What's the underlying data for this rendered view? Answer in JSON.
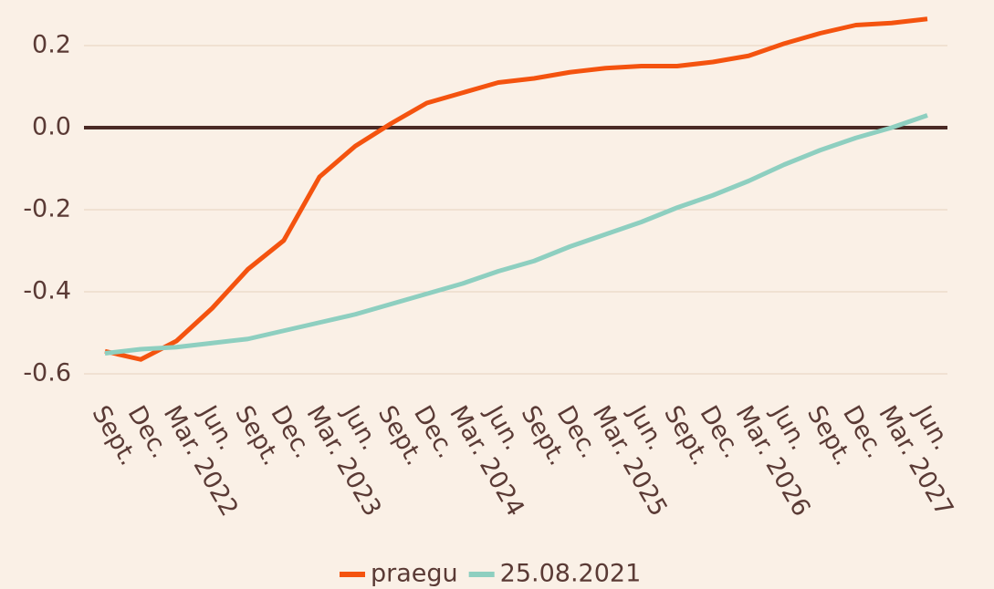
{
  "chart_data": {
    "type": "line",
    "categories": [
      "Sept.",
      "Dec.",
      "Mar. 2022",
      "Jun.",
      "Sept.",
      "Dec.",
      "Mar. 2023",
      "Jun.",
      "Sept.",
      "Dec.",
      "Mar. 2024",
      "Jun.",
      "Sept.",
      "Dec.",
      "Mar. 2025",
      "Jun.",
      "Sept.",
      "Dec.",
      "Mar. 2026",
      "Jun.",
      "Sept.",
      "Dec.",
      "Mar. 2027",
      "Jun."
    ],
    "series": [
      {
        "name": "praegu",
        "color": "#f4530f",
        "values": [
          -0.545,
          -0.565,
          -0.52,
          -0.44,
          -0.345,
          -0.275,
          -0.12,
          -0.045,
          0.01,
          0.06,
          0.085,
          0.11,
          0.12,
          0.135,
          0.145,
          0.15,
          0.15,
          0.16,
          0.175,
          0.205,
          0.23,
          0.25,
          0.255,
          0.265
        ]
      },
      {
        "name": "25.08.2021",
        "color": "#8ecfc0",
        "values": [
          -0.55,
          -0.54,
          -0.535,
          -0.525,
          -0.515,
          -0.495,
          -0.475,
          -0.455,
          -0.43,
          -0.405,
          -0.38,
          -0.35,
          -0.325,
          -0.29,
          -0.26,
          -0.23,
          -0.195,
          -0.165,
          -0.13,
          -0.09,
          -0.055,
          -0.025,
          0,
          0.03
        ]
      }
    ],
    "ylim": [
      -0.6,
      0.3
    ],
    "yticks": [
      -0.6,
      -0.4,
      -0.2,
      {
        "value": 0,
        "label": "0.0"
      },
      0.2
    ],
    "grid": true,
    "legend": "bottom"
  }
}
